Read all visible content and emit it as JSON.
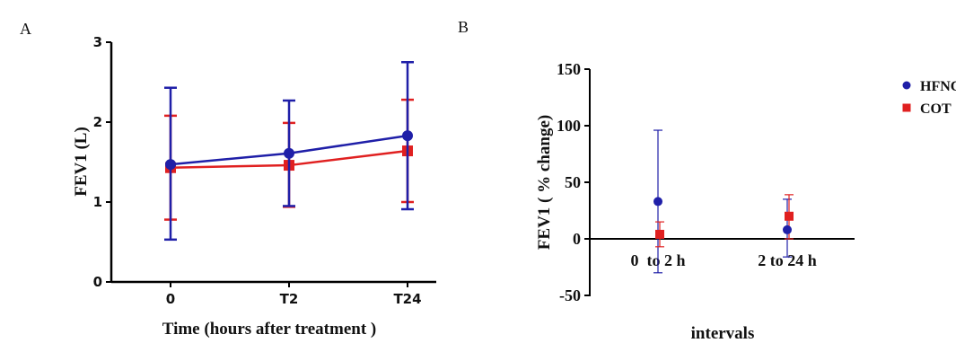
{
  "colors": {
    "hfnc": "#1f1fa8",
    "cot": "#e02020",
    "axis": "#000000"
  },
  "chart_data": [
    {
      "panel_label": "A",
      "type": "line",
      "x_tick_labels": [
        "0",
        "T2",
        "T24"
      ],
      "xlabel": "Time (hours after treatment )",
      "ylabel": "FEV1 (L)",
      "ylim": [
        0,
        3
      ],
      "y_ticks": [
        "0",
        "1",
        "2",
        "3"
      ],
      "grid": false,
      "series": [
        {
          "key": "hfnc",
          "marker": "circle",
          "values": [
            1.47,
            1.61,
            1.83
          ],
          "err_low": [
            0.53,
            0.95,
            0.91
          ],
          "err_high": [
            2.43,
            2.27,
            2.75
          ]
        },
        {
          "key": "cot",
          "marker": "square",
          "values": [
            1.43,
            1.46,
            1.64
          ],
          "err_low": [
            0.78,
            0.94,
            1.0
          ],
          "err_high": [
            2.08,
            1.99,
            2.28
          ]
        }
      ]
    },
    {
      "panel_label": "B",
      "type": "scatter",
      "categories": [
        "0  to 2 h",
        "2 to 24 h"
      ],
      "xlabel": "intervals",
      "ylabel": "FEV1 ( % change)",
      "ylim": [
        -50,
        150
      ],
      "y_ticks": [
        "150",
        "100",
        "50",
        "0",
        "-50"
      ],
      "grid": false,
      "legend": {
        "placement": "right",
        "entries": [
          {
            "key": "hfnc",
            "label": "HFNC"
          },
          {
            "key": "cot",
            "label": "COT"
          }
        ]
      },
      "series": [
        {
          "key": "hfnc",
          "marker": "circle",
          "values": [
            33,
            8
          ],
          "err_low": [
            -30,
            -16
          ],
          "err_high": [
            96,
            35
          ]
        },
        {
          "key": "cot",
          "marker": "square",
          "values": [
            4,
            20
          ],
          "err_low": [
            -7,
            0
          ],
          "err_high": [
            15,
            39
          ]
        }
      ]
    }
  ]
}
